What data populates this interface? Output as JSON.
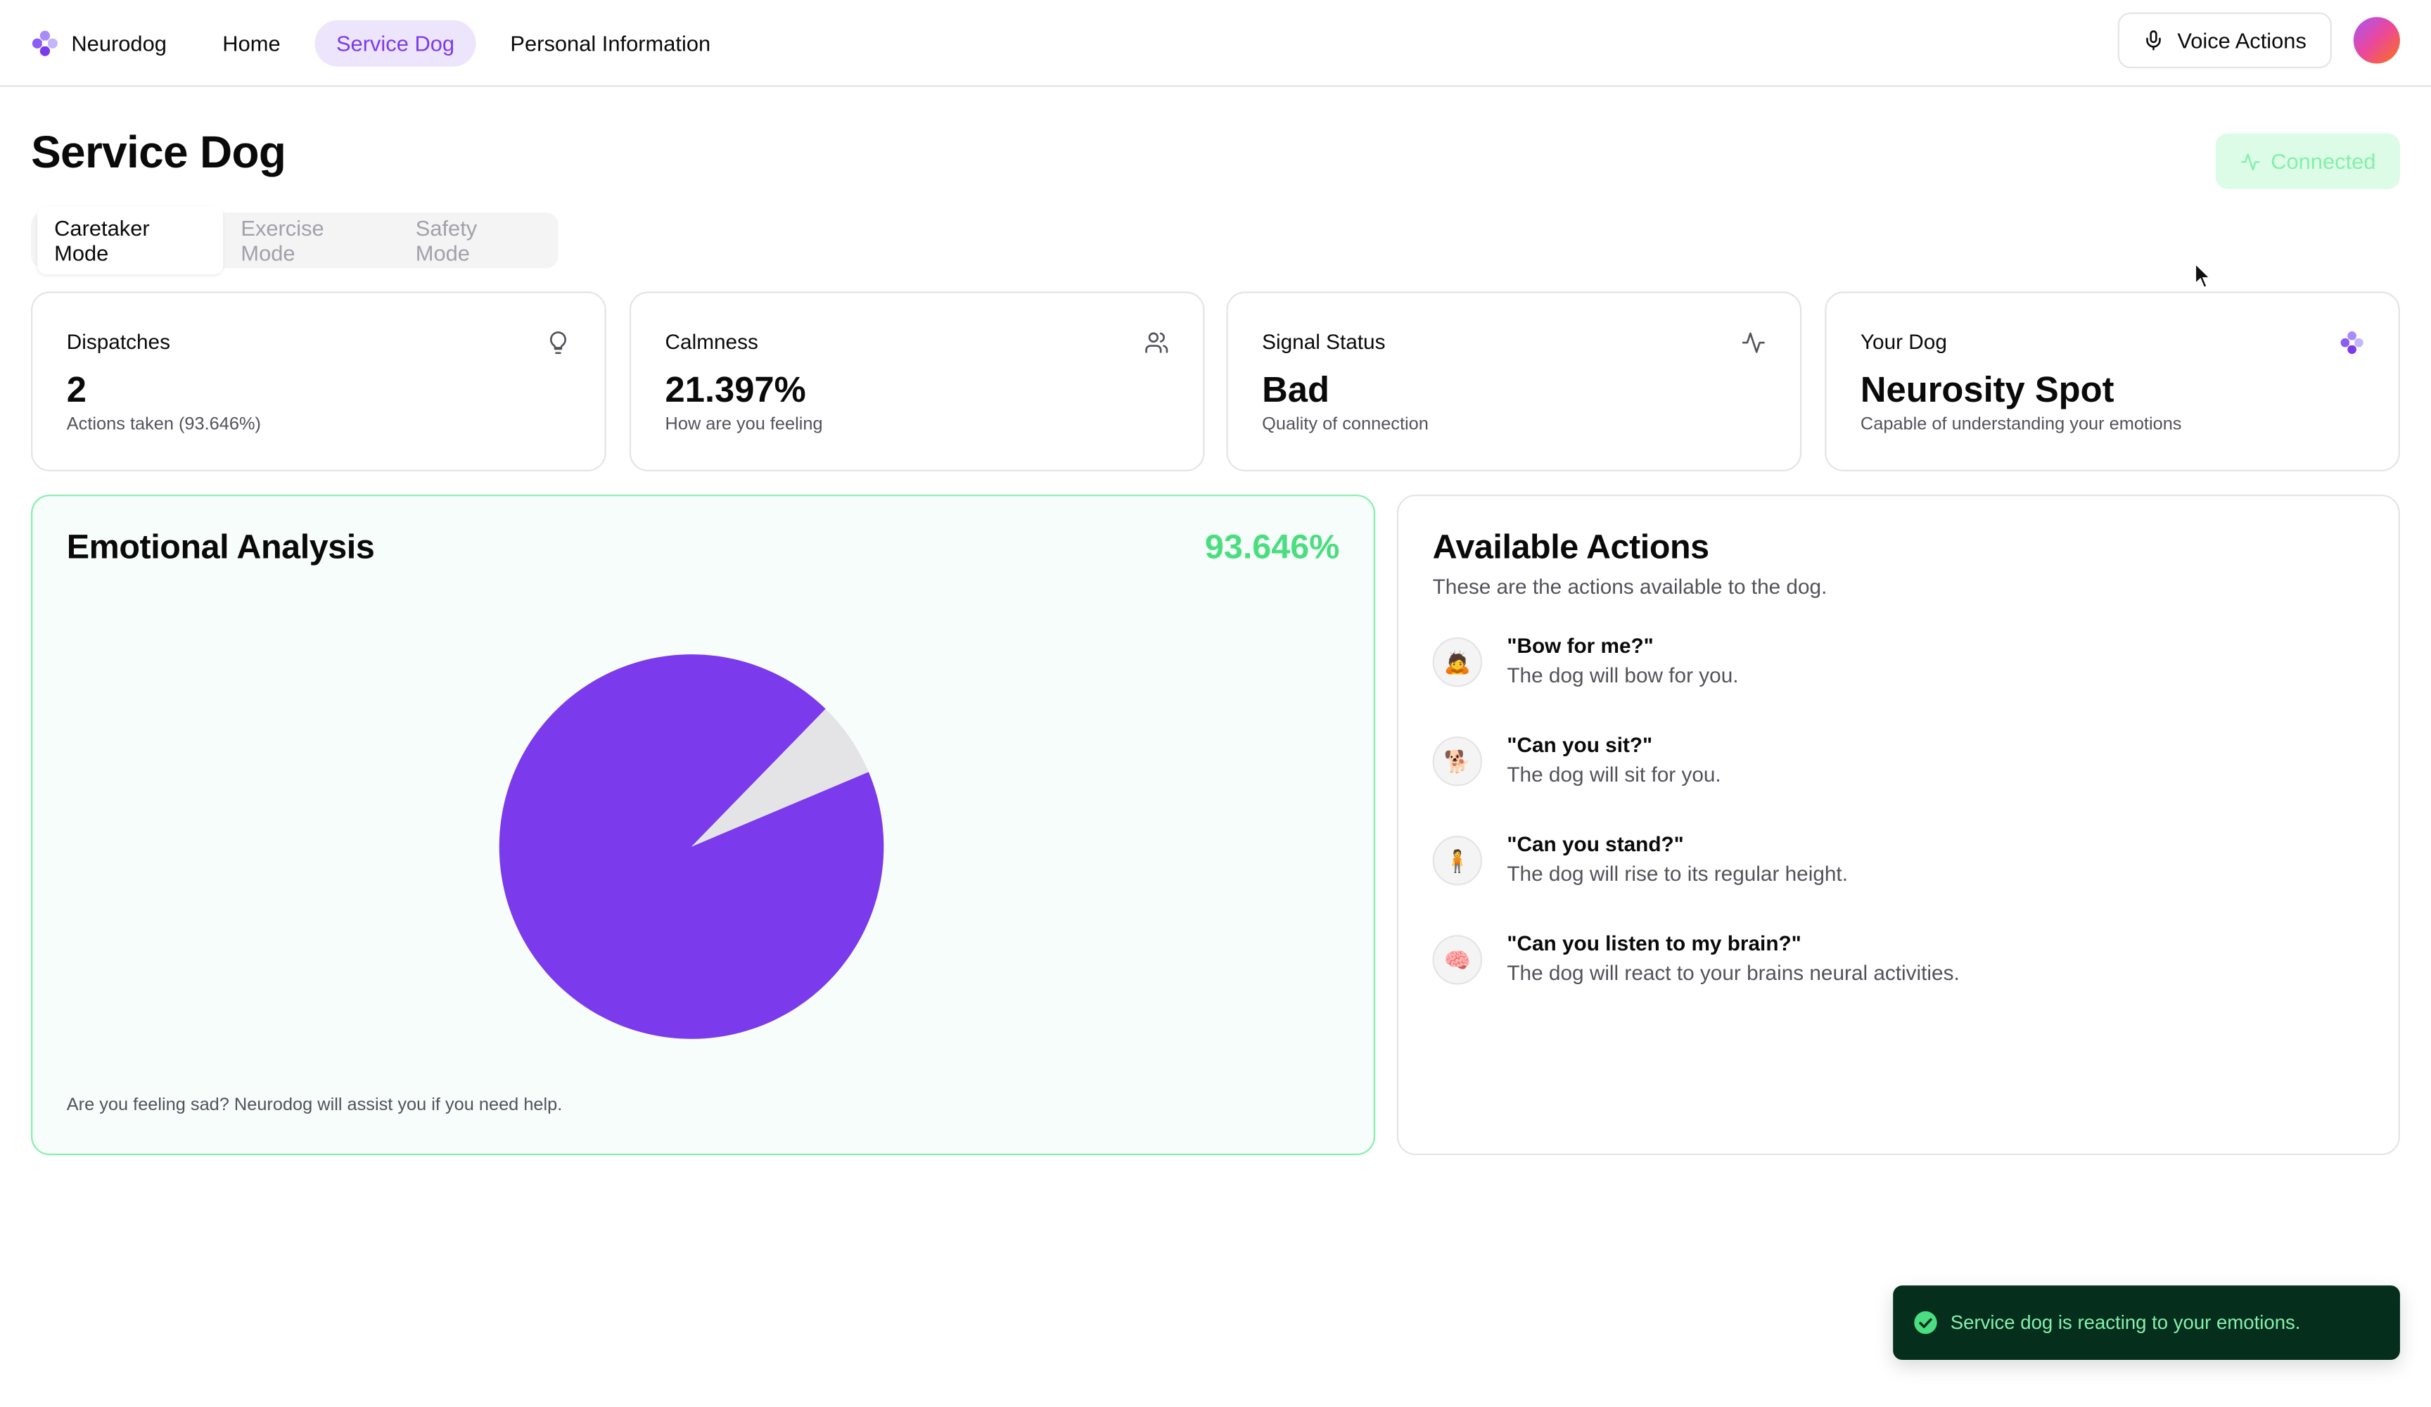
{
  "app": {
    "name": "Neurodog",
    "nav": [
      {
        "label": "Home",
        "active": false
      },
      {
        "label": "Service Dog",
        "active": true
      },
      {
        "label": "Personal Information",
        "active": false
      }
    ],
    "voice_actions_label": "Voice Actions",
    "accent_color": "#7c3aed"
  },
  "page": {
    "title": "Service Dog",
    "status_label": "Connected",
    "tabs": [
      {
        "label": "Caretaker Mode",
        "active": true
      },
      {
        "label": "Exercise Mode",
        "active": false
      },
      {
        "label": "Safety Mode",
        "active": false
      }
    ]
  },
  "stats": [
    {
      "title": "Dispatches",
      "value": "2",
      "sub": "Actions taken (93.646%)",
      "icon": "lightbulb-icon"
    },
    {
      "title": "Calmness",
      "value": "21.397%",
      "sub": "How are you feeling",
      "icon": "users-icon"
    },
    {
      "title": "Signal Status",
      "value": "Bad",
      "sub": "Quality of connection",
      "icon": "activity-icon"
    },
    {
      "title": "Your Dog",
      "value": "Neurosity Spot",
      "sub": "Capable of understanding your emotions",
      "icon": "neurodog-logo-icon"
    }
  ],
  "emotion": {
    "title": "Emotional Analysis",
    "percentage": "93.646%",
    "note": "Are you feeling sad? Neurodog will assist you if you need help."
  },
  "chart_data": {
    "type": "pie",
    "categories": [
      "",
      ""
    ],
    "values": [
      93.646,
      6.354
    ],
    "colors": [
      "#7c3aed",
      "#e4e4e7"
    ],
    "title": ""
  },
  "actions": {
    "title": "Available Actions",
    "subtitle": "These are the actions available to the dog.",
    "items": [
      {
        "emoji": "🙇",
        "command": "\"Bow for me?\"",
        "description": "The dog will bow for you."
      },
      {
        "emoji": "🐕",
        "command": "\"Can you sit?\"",
        "description": "The dog will sit for you."
      },
      {
        "emoji": "🧍",
        "command": "\"Can you stand?\"",
        "description": "The dog will rise to its regular height."
      },
      {
        "emoji": "🧠",
        "command": "\"Can you listen to my brain?\"",
        "description": "The dog will react to your brains neural activities."
      }
    ]
  },
  "toast": {
    "message": "Service dog is reacting to your emotions."
  }
}
